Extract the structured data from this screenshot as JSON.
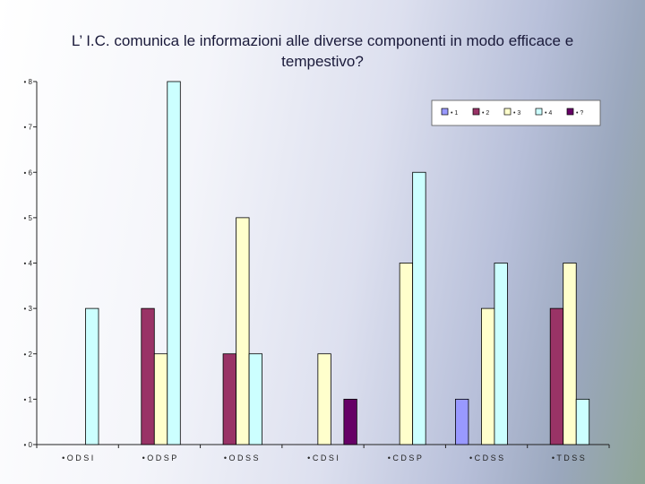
{
  "chart_data": {
    "type": "bar",
    "title": "L’ I.C. comunica le informazioni alle diverse componenti in modo efficace e tempestivo?",
    "categories": [
      "• O D S I",
      "• O D S P",
      "• O D S S",
      "• C D S I",
      "• C D S P",
      "• C D S S",
      "• T D S S"
    ],
    "ylim": [
      0,
      8
    ],
    "yticks": [
      "• 0",
      "• 1",
      "• 2",
      "• 3",
      "• 4",
      "• 5",
      "• 6",
      "• 7",
      "• 8"
    ],
    "legend_position": "top-right",
    "series": [
      {
        "name": "• 1",
        "color": "#9999ff",
        "values": [
          0,
          0,
          0,
          0,
          0,
          1,
          0
        ]
      },
      {
        "name": "• 2",
        "color": "#993366",
        "values": [
          0,
          3,
          2,
          0,
          0,
          0,
          3
        ]
      },
      {
        "name": "• 3",
        "color": "#ffffcc",
        "values": [
          0,
          2,
          5,
          2,
          4,
          3,
          4
        ]
      },
      {
        "name": "• 4",
        "color": "#ccffff",
        "values": [
          3,
          8,
          2,
          0,
          6,
          4,
          1
        ]
      },
      {
        "name": "• ?",
        "color": "#660066",
        "values": [
          0,
          0,
          0,
          1,
          0,
          0,
          0
        ]
      }
    ]
  }
}
